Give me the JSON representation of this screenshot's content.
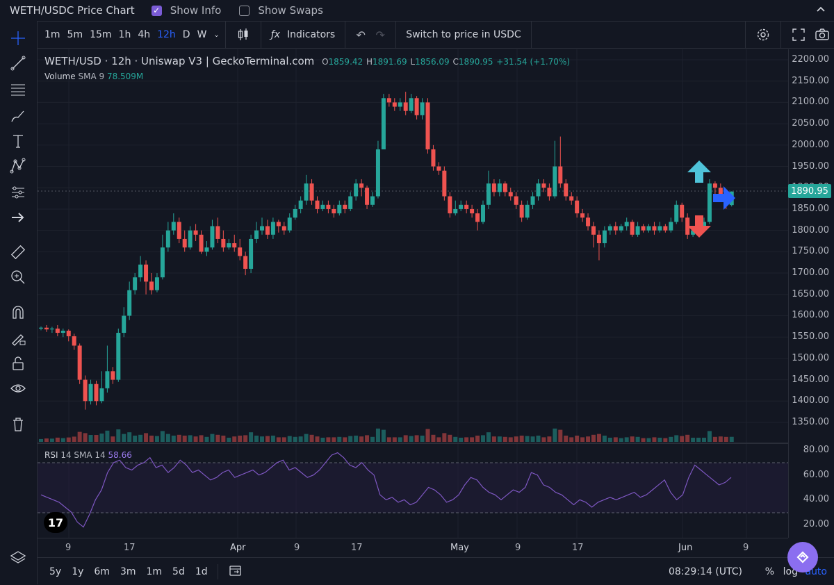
{
  "header": {
    "title": "WETH/USDC Price Chart",
    "show_info_label": "Show Info",
    "show_info_checked": true,
    "show_swaps_label": "Show Swaps",
    "show_swaps_checked": false
  },
  "toolbar": {
    "timeframes": [
      "1m",
      "5m",
      "15m",
      "1h",
      "4h",
      "12h",
      "D",
      "W"
    ],
    "active_timeframe": "12h",
    "indicators_label": "Indicators",
    "switch_label": "Switch to price in USDC"
  },
  "legend": {
    "symbol": "WETH/USD · 12h · Uniswap V3 | GeckoTerminal.com",
    "open_label": "O",
    "open": "1859.42",
    "high_label": "H",
    "high": "1891.69",
    "low_label": "L",
    "low": "1856.09",
    "close_label": "C",
    "close": "1890.95",
    "change": "+31.54 (+1.70%)",
    "volume_label": "Volume",
    "volume_sma": "SMA 9",
    "volume_value": "78.509M",
    "rsi_label": "RSI",
    "rsi_params": "14 SMA 14",
    "rsi_value": "58.66"
  },
  "price_axis": {
    "labels": [
      "2200.00",
      "2150.00",
      "2100.00",
      "2050.00",
      "2000.00",
      "1950.00",
      "1900.00",
      "1850.00",
      "1800.00",
      "1750.00",
      "1700.00",
      "1650.00",
      "1600.00",
      "1550.00",
      "1500.00",
      "1450.00",
      "1400.00",
      "1350.00"
    ],
    "current_price": "1890.95"
  },
  "rsi_axis": {
    "labels": [
      "80.00",
      "60.00",
      "40.00",
      "20.00"
    ]
  },
  "time_axis": {
    "labels": [
      "9",
      "17",
      "Apr",
      "9",
      "17",
      "May",
      "9",
      "17",
      "Jun",
      "9"
    ]
  },
  "bottom": {
    "ranges": [
      "5y",
      "1y",
      "6m",
      "3m",
      "1m",
      "5d",
      "1d"
    ],
    "clock": "08:29:14 (UTC)",
    "percent": "%",
    "log": "log",
    "auto": "auto"
  },
  "logo_text": "17",
  "colors": {
    "up": "#26a69a",
    "down": "#ef5350",
    "rsi": "#7e57c2",
    "accent": "#2962ff"
  },
  "chart_data": {
    "type": "candlestick",
    "ylim": [
      1300,
      2220
    ],
    "candles": [
      [
        1570,
        1572,
        1575,
        1566
      ],
      [
        1572,
        1568,
        1578,
        1562
      ],
      [
        1568,
        1570,
        1574,
        1560
      ],
      [
        1570,
        1560,
        1578,
        1552
      ],
      [
        1560,
        1565,
        1570,
        1550
      ],
      [
        1565,
        1552,
        1568,
        1540
      ],
      [
        1552,
        1530,
        1558,
        1520
      ],
      [
        1530,
        1450,
        1535,
        1440
      ],
      [
        1450,
        1400,
        1460,
        1380
      ],
      [
        1400,
        1440,
        1450,
        1392
      ],
      [
        1440,
        1400,
        1448,
        1390
      ],
      [
        1400,
        1430,
        1470,
        1395
      ],
      [
        1430,
        1470,
        1530,
        1420
      ],
      [
        1470,
        1450,
        1480,
        1440
      ],
      [
        1450,
        1560,
        1570,
        1445
      ],
      [
        1560,
        1600,
        1620,
        1550
      ],
      [
        1600,
        1660,
        1680,
        1590
      ],
      [
        1660,
        1690,
        1700,
        1650
      ],
      [
        1690,
        1720,
        1740,
        1680
      ],
      [
        1720,
        1680,
        1730,
        1650
      ],
      [
        1680,
        1660,
        1700,
        1650
      ],
      [
        1660,
        1690,
        1700,
        1655
      ],
      [
        1690,
        1760,
        1790,
        1685
      ],
      [
        1760,
        1800,
        1820,
        1750
      ],
      [
        1800,
        1820,
        1840,
        1790
      ],
      [
        1820,
        1780,
        1830,
        1770
      ],
      [
        1780,
        1760,
        1800,
        1750
      ],
      [
        1760,
        1800,
        1810,
        1755
      ],
      [
        1800,
        1790,
        1815,
        1775
      ],
      [
        1790,
        1750,
        1800,
        1745
      ],
      [
        1750,
        1760,
        1775,
        1740
      ],
      [
        1760,
        1810,
        1825,
        1755
      ],
      [
        1810,
        1780,
        1830,
        1770
      ],
      [
        1780,
        1760,
        1800,
        1750
      ],
      [
        1760,
        1770,
        1780,
        1755
      ],
      [
        1770,
        1760,
        1790,
        1750
      ],
      [
        1760,
        1740,
        1780,
        1730
      ],
      [
        1740,
        1710,
        1750,
        1695
      ],
      [
        1710,
        1780,
        1790,
        1700
      ],
      [
        1780,
        1800,
        1820,
        1770
      ],
      [
        1800,
        1810,
        1830,
        1790
      ],
      [
        1810,
        1790,
        1825,
        1780
      ],
      [
        1790,
        1820,
        1830,
        1780
      ],
      [
        1820,
        1810,
        1825,
        1795
      ],
      [
        1810,
        1800,
        1820,
        1790
      ],
      [
        1800,
        1830,
        1840,
        1795
      ],
      [
        1830,
        1850,
        1860,
        1825
      ],
      [
        1850,
        1870,
        1880,
        1840
      ],
      [
        1870,
        1910,
        1930,
        1860
      ],
      [
        1910,
        1870,
        1920,
        1860
      ],
      [
        1870,
        1850,
        1880,
        1840
      ],
      [
        1850,
        1860,
        1870,
        1845
      ],
      [
        1860,
        1850,
        1870,
        1840
      ],
      [
        1850,
        1840,
        1860,
        1830
      ],
      [
        1840,
        1860,
        1870,
        1835
      ],
      [
        1860,
        1850,
        1870,
        1840
      ],
      [
        1850,
        1880,
        1890,
        1845
      ],
      [
        1880,
        1910,
        1920,
        1870
      ],
      [
        1910,
        1900,
        1920,
        1880
      ],
      [
        1900,
        1860,
        1905,
        1850
      ],
      [
        1860,
        1880,
        1890,
        1855
      ],
      [
        1880,
        1990,
        2010,
        1875
      ],
      [
        1990,
        2110,
        2120,
        2000
      ],
      [
        2110,
        2100,
        2120,
        2090
      ],
      [
        2100,
        2090,
        2110,
        2080
      ],
      [
        2090,
        2100,
        2110,
        2080
      ],
      [
        2100,
        2080,
        2125,
        2070
      ],
      [
        2080,
        2110,
        2120,
        2075
      ],
      [
        2110,
        2070,
        2115,
        2060
      ],
      [
        2070,
        2100,
        2110,
        2060
      ],
      [
        2100,
        1990,
        2110,
        1980
      ],
      [
        1990,
        1950,
        2000,
        1940
      ],
      [
        1950,
        1940,
        1960,
        1930
      ],
      [
        1940,
        1880,
        1950,
        1870
      ],
      [
        1880,
        1840,
        1890,
        1830
      ],
      [
        1840,
        1850,
        1870,
        1835
      ],
      [
        1850,
        1860,
        1870,
        1845
      ],
      [
        1860,
        1850,
        1870,
        1840
      ],
      [
        1850,
        1840,
        1860,
        1830
      ],
      [
        1840,
        1820,
        1850,
        1800
      ],
      [
        1820,
        1860,
        1870,
        1815
      ],
      [
        1860,
        1910,
        1940,
        1850
      ],
      [
        1910,
        1890,
        1920,
        1880
      ],
      [
        1890,
        1910,
        1920,
        1880
      ],
      [
        1910,
        1890,
        1915,
        1880
      ],
      [
        1890,
        1880,
        1900,
        1870
      ],
      [
        1880,
        1860,
        1890,
        1850
      ],
      [
        1860,
        1830,
        1870,
        1820
      ],
      [
        1830,
        1860,
        1870,
        1825
      ],
      [
        1860,
        1880,
        1890,
        1850
      ],
      [
        1880,
        1910,
        1920,
        1870
      ],
      [
        1910,
        1900,
        1920,
        1890
      ],
      [
        1900,
        1880,
        1910,
        1870
      ],
      [
        1880,
        1950,
        2010,
        1875
      ],
      [
        1950,
        1910,
        2020,
        1900
      ],
      [
        1910,
        1880,
        1920,
        1870
      ],
      [
        1880,
        1870,
        1890,
        1860
      ],
      [
        1870,
        1840,
        1880,
        1830
      ],
      [
        1840,
        1830,
        1850,
        1820
      ],
      [
        1830,
        1810,
        1840,
        1800
      ],
      [
        1810,
        1790,
        1820,
        1760
      ],
      [
        1790,
        1770,
        1800,
        1730
      ],
      [
        1770,
        1800,
        1810,
        1760
      ],
      [
        1800,
        1810,
        1815,
        1790
      ],
      [
        1810,
        1800,
        1820,
        1790
      ],
      [
        1800,
        1810,
        1815,
        1795
      ],
      [
        1810,
        1820,
        1830,
        1800
      ],
      [
        1820,
        1790,
        1825,
        1785
      ],
      [
        1790,
        1810,
        1820,
        1785
      ],
      [
        1810,
        1800,
        1815,
        1795
      ],
      [
        1800,
        1810,
        1815,
        1795
      ],
      [
        1810,
        1800,
        1820,
        1790
      ],
      [
        1800,
        1810,
        1820,
        1795
      ],
      [
        1810,
        1800,
        1815,
        1795
      ],
      [
        1800,
        1820,
        1830,
        1795
      ],
      [
        1820,
        1860,
        1870,
        1815
      ],
      [
        1860,
        1830,
        1865,
        1820
      ],
      [
        1830,
        1790,
        1840,
        1780
      ],
      [
        1790,
        1800,
        1810,
        1785
      ],
      [
        1800,
        1810,
        1820,
        1795
      ],
      [
        1810,
        1820,
        1830,
        1805
      ],
      [
        1820,
        1910,
        1920,
        1815
      ],
      [
        1910,
        1900,
        1915,
        1880
      ],
      [
        1900,
        1880,
        1910,
        1870
      ],
      [
        1880,
        1860,
        1885,
        1850
      ],
      [
        1859.42,
        1890.95,
        1891.69,
        1856.09
      ]
    ],
    "rsi": [
      44,
      42,
      40,
      38,
      34,
      30,
      22,
      18,
      28,
      40,
      48,
      62,
      70,
      72,
      66,
      64,
      68,
      70,
      74,
      66,
      68,
      62,
      66,
      72,
      68,
      62,
      64,
      60,
      56,
      58,
      62,
      64,
      58,
      60,
      62,
      64,
      60,
      62,
      66,
      70,
      72,
      64,
      66,
      62,
      58,
      60,
      64,
      70,
      76,
      78,
      74,
      68,
      66,
      70,
      64,
      60,
      44,
      40,
      42,
      38,
      40,
      36,
      38,
      44,
      50,
      48,
      44,
      38,
      40,
      44,
      52,
      58,
      56,
      50,
      46,
      44,
      40,
      44,
      48,
      46,
      50,
      62,
      60,
      52,
      50,
      46,
      44,
      40,
      36,
      40,
      38,
      34,
      38,
      40,
      42,
      40,
      42,
      44,
      46,
      42,
      44,
      48,
      52,
      56,
      46,
      40,
      44,
      58,
      68,
      64,
      60,
      56,
      52,
      54,
      58
    ]
  }
}
